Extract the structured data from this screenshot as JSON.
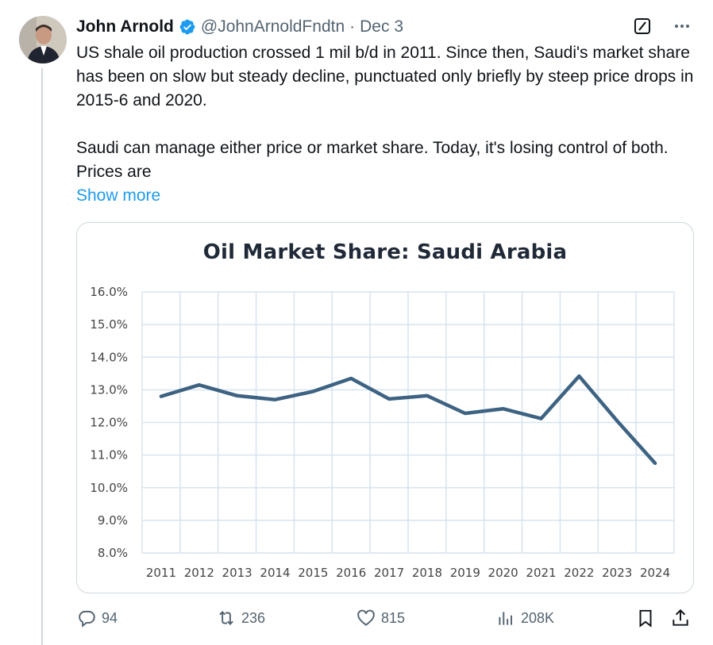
{
  "tweet": {
    "author_name": "John Arnold",
    "handle": "@JohnArnoldFndtn",
    "separator": "·",
    "date": "Dec 3",
    "text_para1": "US shale oil production crossed 1 mil b/d in 2011. Since then, Saudi's market share has been on slow but steady decline, punctuated only briefly by steep price drops in 2015-6 and 2020.",
    "text_para2": "Saudi can manage either price or market share. Today, it's losing control of both. Prices are",
    "show_more": "Show more"
  },
  "actions": {
    "replies": "94",
    "reposts": "236",
    "likes": "815",
    "views": "208K"
  },
  "icons": {
    "verified": "verified-badge-icon",
    "grok": "grok-icon",
    "more": "more-icon",
    "reply": "reply-icon",
    "repost": "repost-icon",
    "like": "heart-icon",
    "views": "views-icon",
    "bookmark": "bookmark-icon",
    "share": "share-icon"
  },
  "colors": {
    "accent": "#1d9bf0",
    "line": "#3e6382",
    "grid": "#d6e4f0",
    "muted": "#536471"
  },
  "chart_data": {
    "type": "line",
    "title": "Oil Market Share: Saudi Arabia",
    "x": [
      "2011",
      "2012",
      "2013",
      "2014",
      "2015",
      "2016",
      "2017",
      "2018",
      "2019",
      "2020",
      "2021",
      "2022",
      "2023",
      "2024"
    ],
    "series": [
      {
        "values": [
          12.8,
          13.15,
          12.82,
          12.7,
          12.95,
          13.35,
          12.72,
          12.82,
          12.28,
          12.42,
          12.12,
          13.42,
          12.05,
          10.75
        ]
      }
    ],
    "ylim": [
      8.0,
      16.0
    ],
    "yticks": [
      "16.0%",
      "15.0%",
      "14.0%",
      "13.0%",
      "12.0%",
      "11.0%",
      "10.0%",
      "9.0%",
      "8.0%"
    ],
    "grid": true,
    "legend": "none"
  }
}
